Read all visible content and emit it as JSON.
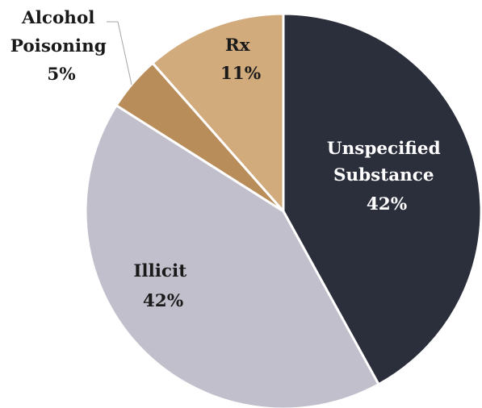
{
  "chart_data": {
    "type": "pie",
    "title": "",
    "slices": [
      {
        "label_lines": [
          "Unspecified",
          "Substance"
        ],
        "percent_label": "42%",
        "value": 42,
        "color": "#2b2e3b",
        "label_color": "#ffffff"
      },
      {
        "label_lines": [
          "Illicit"
        ],
        "percent_label": "42%",
        "value": 42,
        "color": "#c1bfcb",
        "label_color": "#1a1a1a"
      },
      {
        "label_lines": [
          "Alcohol",
          "Poisoning"
        ],
        "percent_label": "5%",
        "value": 4.5,
        "color": "#b98d5a",
        "label_color": "#1a1a1a"
      },
      {
        "label_lines": [
          "Rx"
        ],
        "percent_label": "11%",
        "value": 11.5,
        "color": "#d2ab7c",
        "label_color": "#1a1a1a"
      }
    ],
    "start_angle": "12 o'clock",
    "direction": "clockwise",
    "legend": "none",
    "leader_line": "Alcohol Poisoning"
  }
}
